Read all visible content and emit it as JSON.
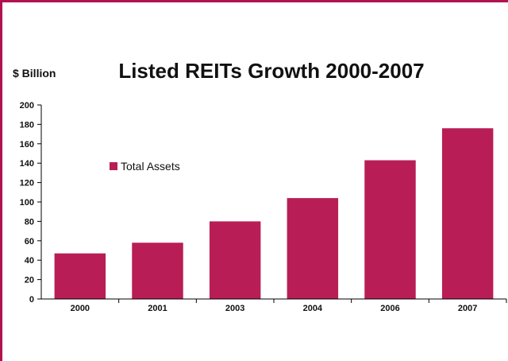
{
  "chart_data": {
    "type": "bar",
    "title": "Listed REITs Growth 2000-2007",
    "ylabel": "$ Billion",
    "xlabel": "",
    "categories": [
      "2000",
      "2001",
      "2003",
      "2004",
      "2006",
      "2007"
    ],
    "series": [
      {
        "name": "Total Assets",
        "values": [
          47,
          58,
          80,
          104,
          143,
          176
        ]
      }
    ],
    "ylim": [
      0,
      200
    ],
    "yticks": [
      0,
      20,
      40,
      60,
      80,
      100,
      120,
      140,
      160,
      180,
      200
    ],
    "grid": false,
    "legend_position": "left",
    "colors": {
      "bar": "#b81e55",
      "frame": "#b0134f",
      "axis": "#000000"
    }
  }
}
